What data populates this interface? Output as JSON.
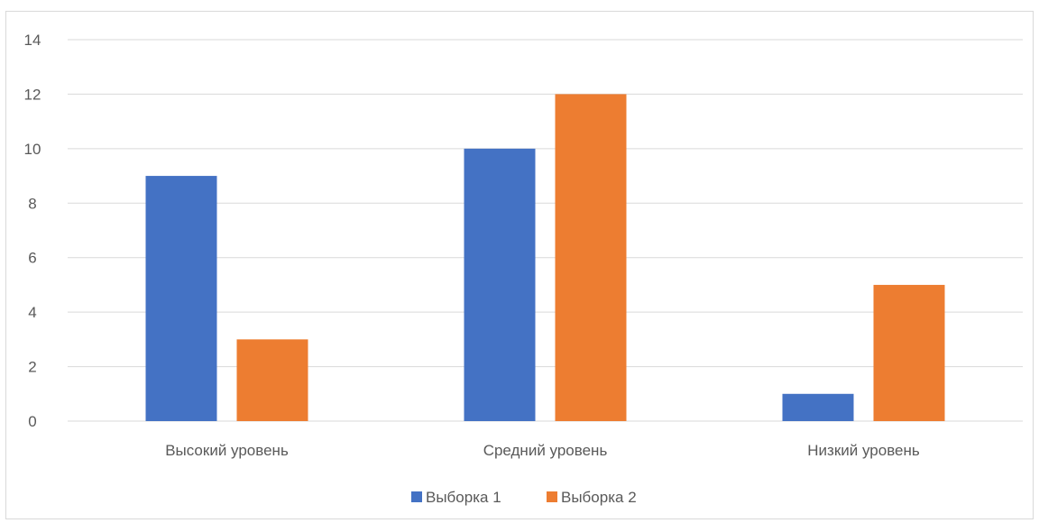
{
  "chart_data": {
    "type": "bar",
    "title": "",
    "xlabel": "",
    "ylabel": "",
    "categories": [
      "Высокий уровень",
      "Средний уровень",
      "Низкий уровень"
    ],
    "series": [
      {
        "name": "Выборка 1",
        "values": [
          9,
          10,
          1
        ],
        "color": "#4472c4"
      },
      {
        "name": "Выборка 2",
        "values": [
          3,
          12,
          5
        ],
        "color": "#ed7d31"
      }
    ],
    "ylim": [
      0,
      14
    ],
    "yticks": [
      0,
      2,
      4,
      6,
      8,
      10,
      12,
      14
    ],
    "grid": true,
    "legend_position": "bottom"
  },
  "colors": {
    "gridline": "#d9d9d9",
    "text": "#595959"
  }
}
